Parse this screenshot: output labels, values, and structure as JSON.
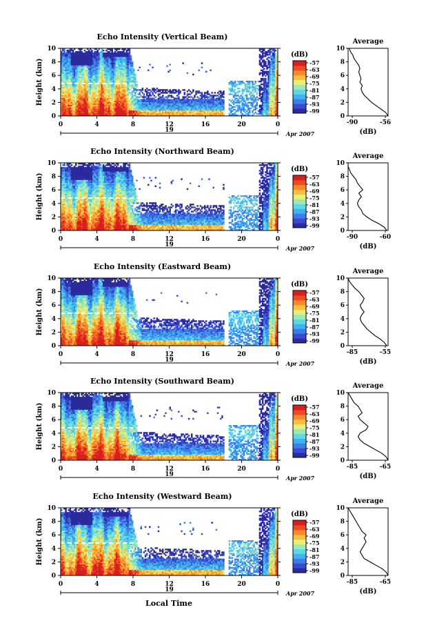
{
  "colors": {
    "colormap": [
      "#2b2b9e",
      "#3a4bd0",
      "#3f7ee6",
      "#3fb2f0",
      "#5fd8e6",
      "#9ee8b8",
      "#e8ee7a",
      "#f7c040",
      "#f58a2a",
      "#ee4a24",
      "#d81e1e"
    ]
  },
  "shared": {
    "xticks": [
      "0",
      "4",
      "8",
      "12",
      "16",
      "20",
      "0"
    ],
    "yticks": [
      "0",
      "2",
      "4",
      "6",
      "8",
      "10"
    ],
    "ylabel": "Height (km)",
    "date_day": "19",
    "date_month_year": "Apr 2007",
    "xlabel": "Local Time",
    "colorbar_label": "(dB)",
    "colorbar_ticks": [
      "-57",
      "-63",
      "-69",
      "-75",
      "-81",
      "-87",
      "-93",
      "-99"
    ],
    "average_title": "Average",
    "average_xlabel": "(dB)"
  },
  "chart_data": [
    {
      "type": "heatmap",
      "title": "Echo Intensity (Vertical Beam)",
      "xlim": [
        0,
        24
      ],
      "ylim": [
        0,
        10
      ],
      "profile": {
        "type": "line",
        "xticks": [
          "-90",
          "-56"
        ],
        "xlim": [
          -90,
          -56
        ],
        "ylim": [
          0,
          10
        ],
        "x": [
          -56,
          -58,
          -62,
          -66,
          -70,
          -73,
          -76,
          -78,
          -79,
          -78,
          -80,
          -79,
          -80,
          -81,
          -80,
          -81,
          -83,
          -85,
          -86,
          -88,
          -89
        ],
        "y": [
          0,
          0.5,
          1,
          1.5,
          2,
          2.5,
          3,
          3.5,
          4,
          4.5,
          5,
          5.5,
          6,
          6.5,
          7,
          7.5,
          8,
          8.5,
          9,
          9.5,
          10
        ]
      }
    },
    {
      "type": "heatmap",
      "title": "Echo Intensity (Northward Beam)",
      "xlim": [
        0,
        24
      ],
      "ylim": [
        0,
        10
      ],
      "profile": {
        "type": "line",
        "xticks": [
          "-90",
          "-60"
        ],
        "xlim": [
          -90,
          -60
        ],
        "ylim": [
          0,
          10
        ],
        "x": [
          -61,
          -63,
          -67,
          -72,
          -76,
          -79,
          -80,
          -82,
          -83,
          -82,
          -80,
          -82,
          -79,
          -81,
          -83,
          -84,
          -86,
          -88,
          -89,
          -90,
          -90
        ],
        "y": [
          0,
          0.5,
          1,
          1.5,
          2,
          2.5,
          3,
          3.5,
          4,
          4.5,
          5,
          5.5,
          6,
          6.5,
          7,
          7.5,
          8,
          8.5,
          9,
          9.5,
          10
        ]
      }
    },
    {
      "type": "heatmap",
      "title": "Echo Intensity (Eastward Beam)",
      "xlim": [
        0,
        24
      ],
      "ylim": [
        0,
        10
      ],
      "profile": {
        "type": "line",
        "xticks": [
          "-85",
          "-55"
        ],
        "xlim": [
          -85,
          -55
        ],
        "ylim": [
          0,
          10
        ],
        "x": [
          -56,
          -58,
          -61,
          -65,
          -68,
          -71,
          -73,
          -75,
          -76,
          -75,
          -73,
          -75,
          -76,
          -74,
          -73,
          -75,
          -77,
          -80,
          -82,
          -84,
          -85
        ],
        "y": [
          0,
          0.5,
          1,
          1.5,
          2,
          2.5,
          3,
          3.5,
          4,
          4.5,
          5,
          5.5,
          6,
          6.5,
          7,
          7.5,
          8,
          8.5,
          9,
          9.5,
          10
        ]
      }
    },
    {
      "type": "heatmap",
      "title": "Echo Intensity (Southward Beam)",
      "xlim": [
        0,
        24
      ],
      "ylim": [
        0,
        10
      ],
      "profile": {
        "type": "line",
        "xticks": [
          "-85",
          "-65"
        ],
        "xlim": [
          -85,
          -65
        ],
        "ylim": [
          0,
          10
        ],
        "x": [
          -65,
          -66,
          -68,
          -71,
          -74,
          -77,
          -79,
          -80,
          -79,
          -76,
          -75,
          -77,
          -79,
          -80,
          -78,
          -79,
          -80,
          -82,
          -83,
          -84,
          -85
        ],
        "y": [
          0,
          0.5,
          1,
          1.5,
          2,
          2.5,
          3,
          3.5,
          4,
          4.5,
          5,
          5.5,
          6,
          6.5,
          7,
          7.5,
          8,
          8.5,
          9,
          9.5,
          10
        ]
      }
    },
    {
      "type": "heatmap",
      "title": "Echo Intensity (Westward Beam)",
      "xlim": [
        0,
        24
      ],
      "ylim": [
        0,
        10
      ],
      "profile": {
        "type": "line",
        "xticks": [
          "-85",
          "-65"
        ],
        "xlim": [
          -85,
          -65
        ],
        "ylim": [
          0,
          10
        ],
        "x": [
          -65,
          -66,
          -68,
          -71,
          -74,
          -77,
          -78,
          -79,
          -78,
          -77,
          -76,
          -77,
          -76,
          -78,
          -79,
          -80,
          -81,
          -82,
          -83,
          -84,
          -85
        ],
        "y": [
          0,
          0.5,
          1,
          1.5,
          2,
          2.5,
          3,
          3.5,
          4,
          4.5,
          5,
          5.5,
          6,
          6.5,
          7,
          7.5,
          8,
          8.5,
          9,
          9.5,
          10
        ]
      }
    }
  ]
}
